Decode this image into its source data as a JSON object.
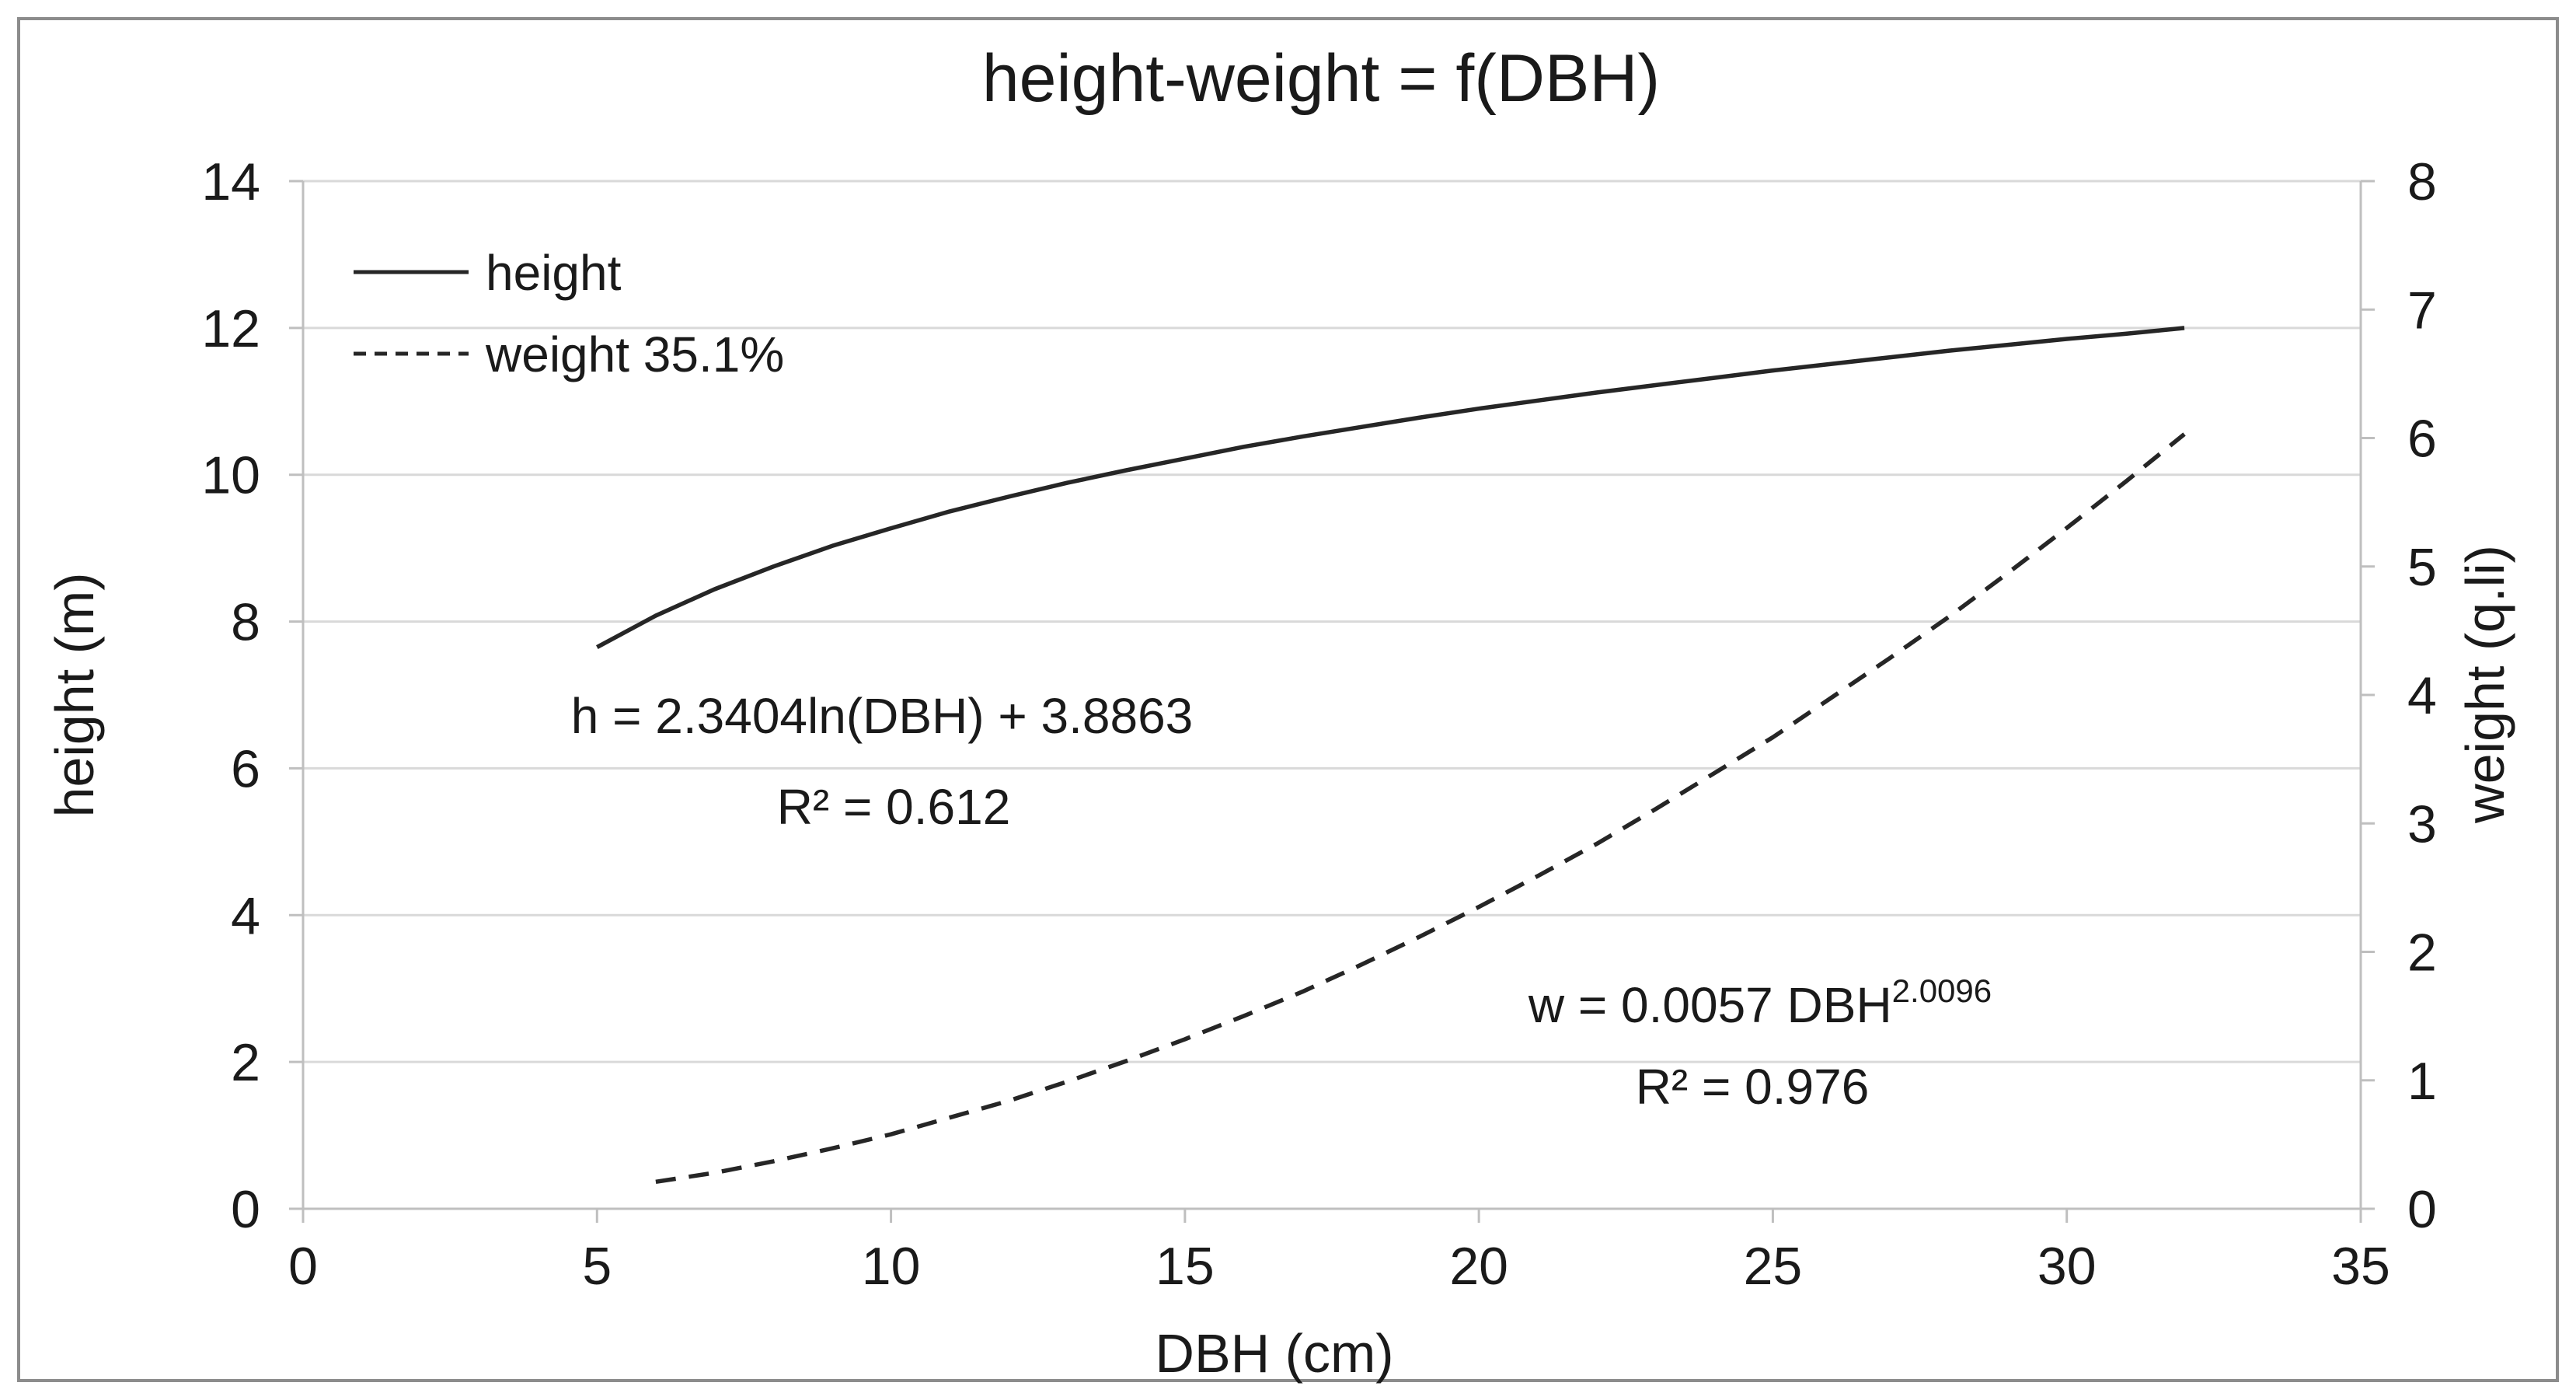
{
  "figure": {
    "title": "height-weight = f(DBH)",
    "background_color": "#ffffff",
    "border_color": "#8c8c8c",
    "text_color": "#1a1a1a",
    "gridline_color": "#d9d9d9",
    "axis_line_color": "#bfbfbf",
    "series_color": "#262626"
  },
  "axes": {
    "x": {
      "title": "DBH (cm)",
      "min": 0,
      "max": 35,
      "ticks": [
        0,
        5,
        10,
        15,
        20,
        25,
        30,
        35
      ]
    },
    "y_left": {
      "title": "height (m)",
      "min": 0,
      "max": 14,
      "ticks": [
        0,
        2,
        4,
        6,
        8,
        10,
        12,
        14
      ]
    },
    "y_right": {
      "title": "weight (q.li)",
      "min": 0,
      "max": 8,
      "ticks": [
        0,
        1,
        2,
        3,
        4,
        5,
        6,
        7,
        8
      ]
    }
  },
  "legend": {
    "items": [
      {
        "label": "height",
        "line_style": "solid"
      },
      {
        "label": "weight 35.1%",
        "line_style": "dashed"
      }
    ]
  },
  "annotations": {
    "height_equation": "h = 2.3404ln(DBH) + 3.8863",
    "height_r2": "R² = 0.612",
    "weight_equation_base": "w = 0.0057 DBH",
    "weight_equation_exponent": "2.0096",
    "weight_r2": "R² = 0.976"
  },
  "chart_data": {
    "type": "line",
    "title": "height-weight = f(DBH)",
    "xlabel": "DBH (cm)",
    "ylabel_left": "height (m)",
    "ylabel_right": "weight (q.li)",
    "xlim": [
      0,
      35
    ],
    "ylim_left": [
      0,
      14
    ],
    "ylim_right": [
      0,
      8
    ],
    "grid": "horizontal-major-left-axis",
    "legend_position": "top-left-inside",
    "series": [
      {
        "name": "height",
        "axis": "left",
        "style": "solid",
        "equation": "h = 2.3404ln(DBH) + 3.8863",
        "r_squared": 0.612,
        "x": [
          5,
          6,
          7,
          8,
          9,
          10,
          11,
          12,
          13,
          14,
          15,
          16,
          17,
          18,
          19,
          20,
          21,
          22,
          23,
          24,
          25,
          26,
          27,
          28,
          29,
          30,
          31,
          32
        ],
        "y": [
          7.65,
          8.08,
          8.44,
          8.75,
          9.03,
          9.27,
          9.5,
          9.7,
          9.89,
          10.06,
          10.22,
          10.38,
          10.52,
          10.65,
          10.78,
          10.9,
          11.01,
          11.12,
          11.22,
          11.32,
          11.42,
          11.51,
          11.6,
          11.69,
          11.77,
          11.85,
          11.92,
          12.0
        ]
      },
      {
        "name": "weight 35.1%",
        "axis": "right",
        "style": "dashed",
        "equation": "w = 0.0057·DBH^2.0096",
        "r_squared": 0.976,
        "x": [
          6,
          7,
          8,
          9,
          10,
          11,
          12,
          13,
          14,
          15,
          16,
          17,
          18,
          19,
          20,
          21,
          22,
          23,
          24,
          25,
          26,
          27,
          28,
          29,
          30,
          31,
          32
        ],
        "y": [
          0.21,
          0.28,
          0.37,
          0.47,
          0.58,
          0.71,
          0.84,
          0.99,
          1.15,
          1.32,
          1.5,
          1.69,
          1.9,
          2.12,
          2.35,
          2.59,
          2.84,
          3.11,
          3.39,
          3.67,
          3.98,
          4.29,
          4.61,
          4.95,
          5.3,
          5.66,
          6.03
        ]
      }
    ]
  }
}
